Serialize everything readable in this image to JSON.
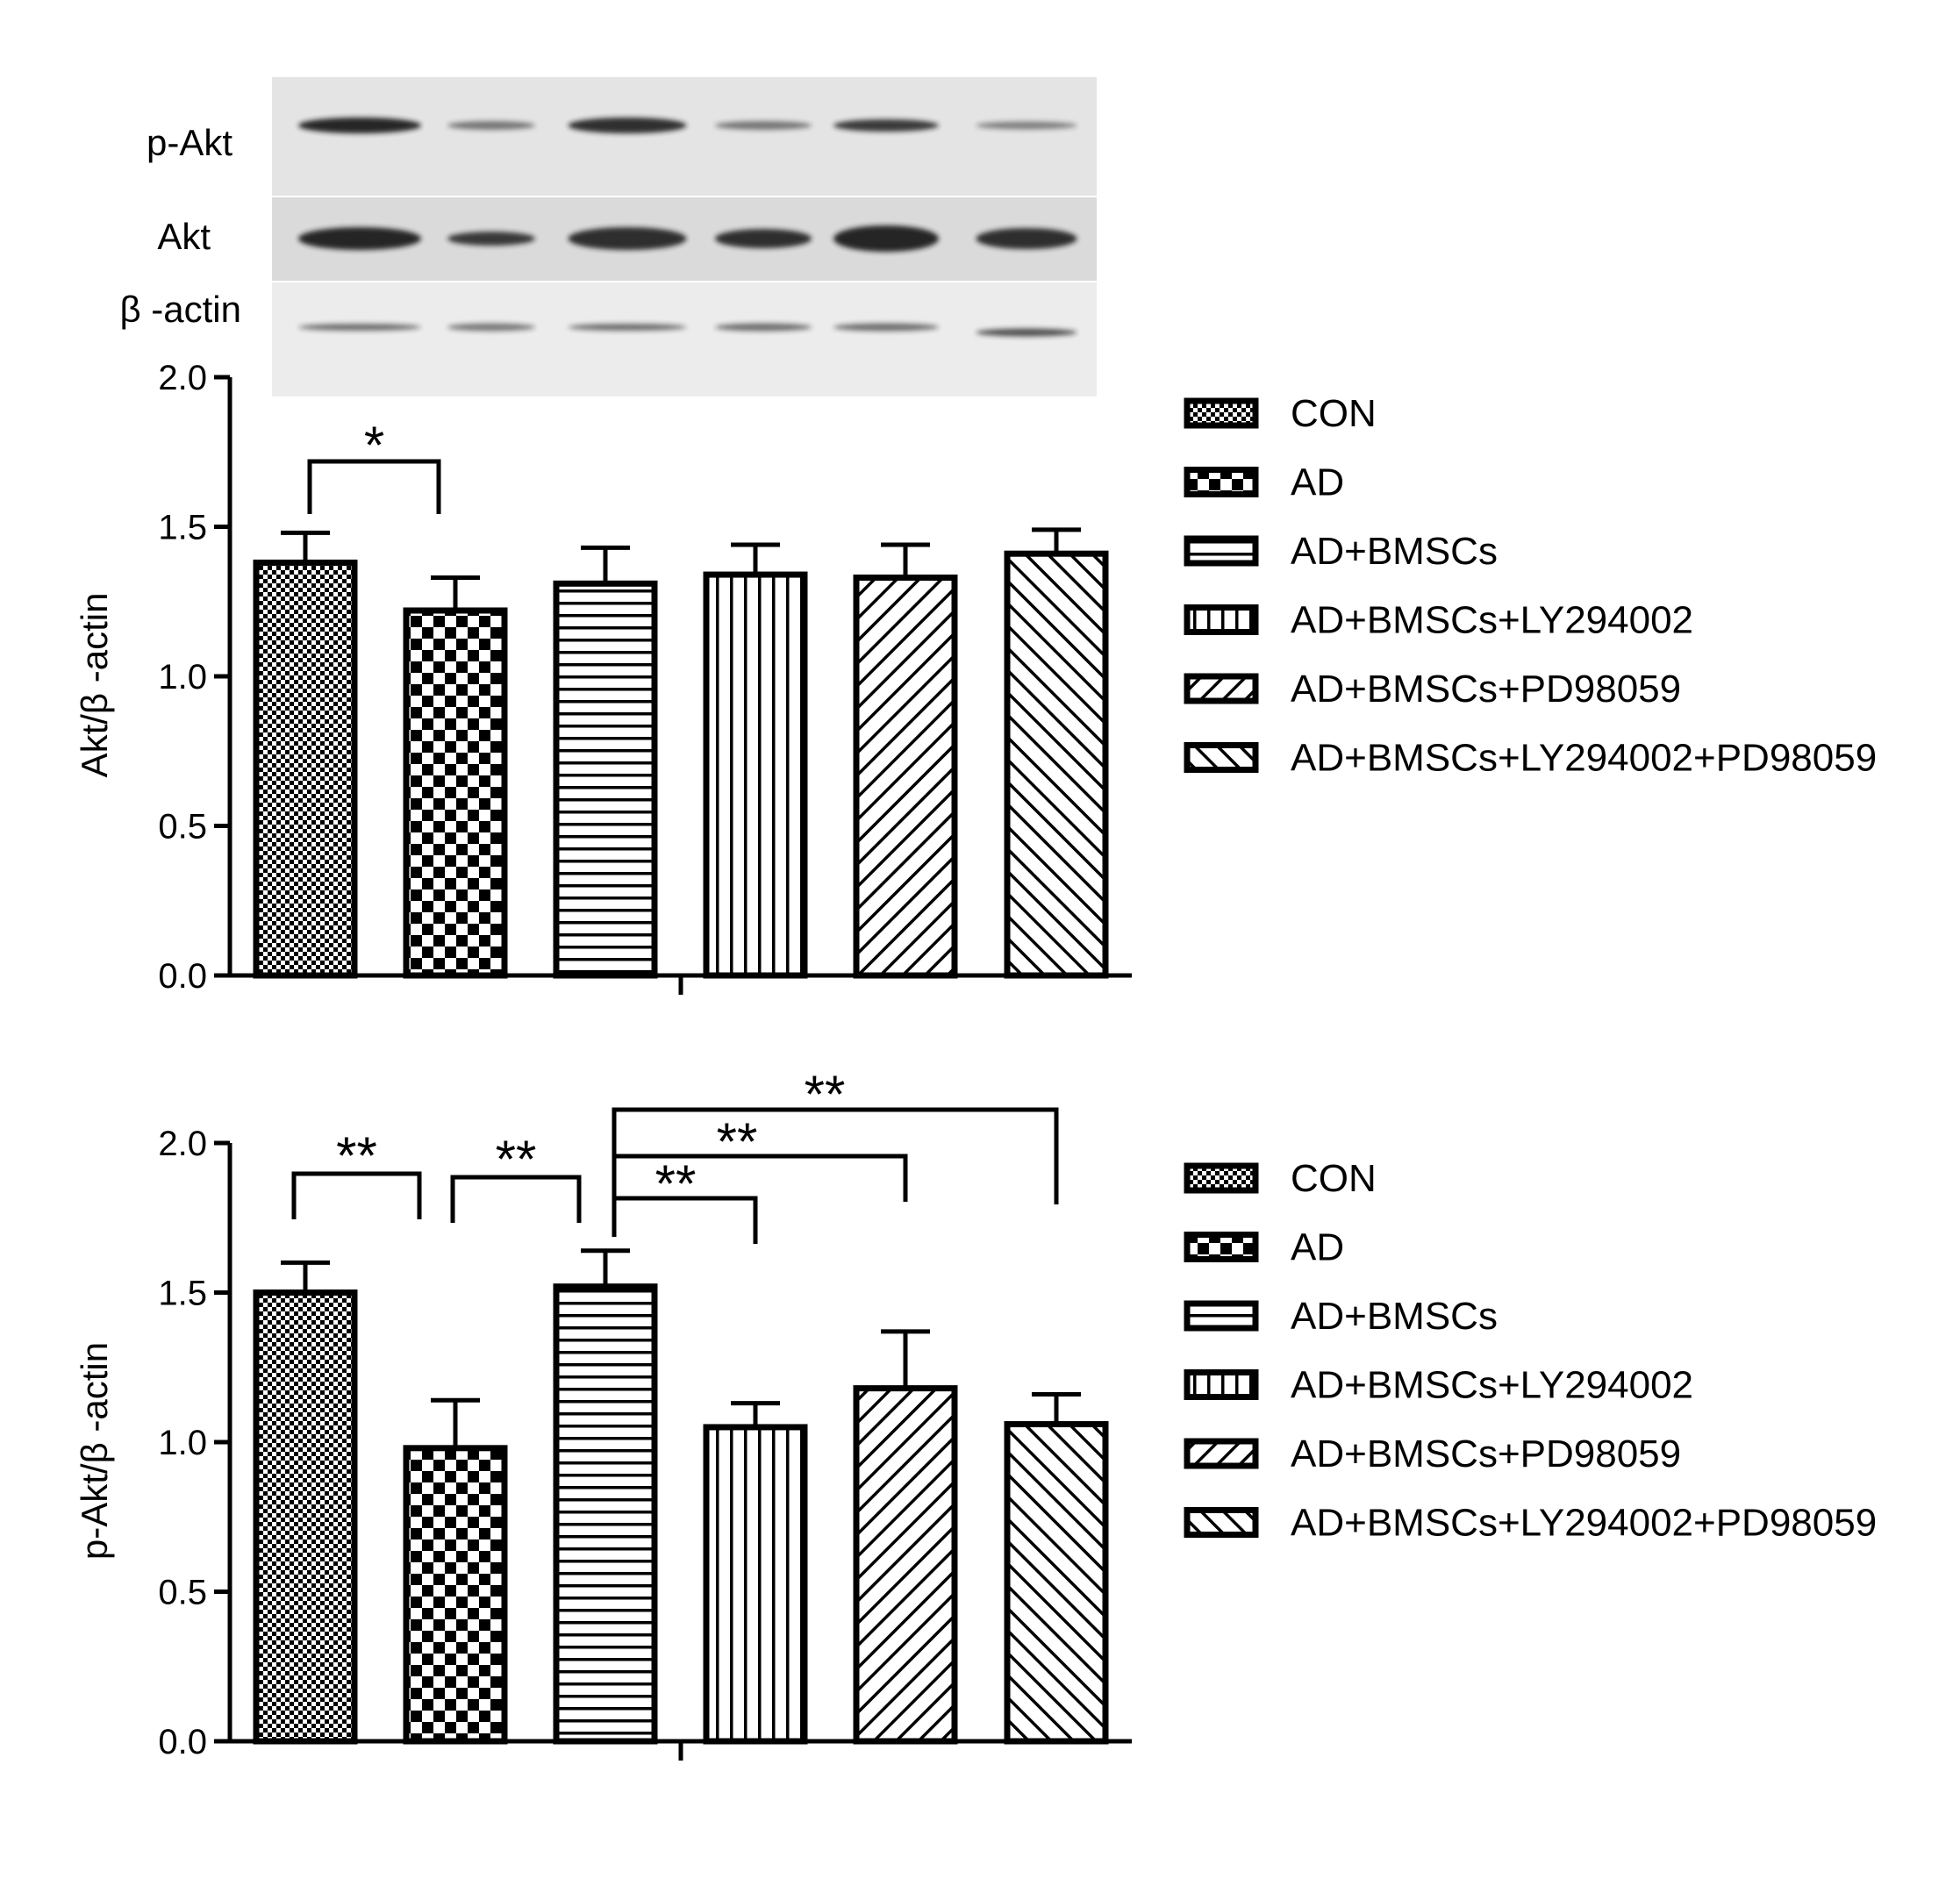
{
  "blot": {
    "rows": [
      "p-Akt",
      "Akt",
      "β -actin"
    ],
    "lanes": 6
  },
  "legend_entries": [
    "CON",
    "AD",
    "AD+BMSCs",
    "AD+BMSCs+LY294002",
    "AD+BMSCs+PD98059",
    "AD+BMSCs+LY294002+PD98059"
  ],
  "patterns": [
    "fine-checker",
    "checker",
    "horizontal",
    "vertical",
    "diag-up",
    "diag-down"
  ],
  "chart_data": [
    {
      "type": "bar",
      "title": "",
      "xlabel": "",
      "ylabel": "Akt/β -actin",
      "ylim": [
        0,
        2.0
      ],
      "yticks": [
        "0.0",
        "0.5",
        "1.0",
        "1.5",
        "2.0"
      ],
      "categories": [
        "CON",
        "AD",
        "AD+BMSCs",
        "AD+BMSCs+LY294002",
        "AD+BMSCs+PD98059",
        "AD+BMSCs+LY294002+PD98059"
      ],
      "values": [
        1.38,
        1.22,
        1.31,
        1.34,
        1.33,
        1.41
      ],
      "errors": [
        0.1,
        0.11,
        0.12,
        0.1,
        0.11,
        0.08
      ],
      "significance": [
        {
          "from": 0,
          "to": 1,
          "label": "*"
        }
      ],
      "legend_position": "right"
    },
    {
      "type": "bar",
      "title": "",
      "xlabel": "",
      "ylabel": "p-Akt/β -actin",
      "ylim": [
        0,
        2.0
      ],
      "yticks": [
        "0.0",
        "0.5",
        "1.0",
        "1.5",
        "2.0"
      ],
      "categories": [
        "CON",
        "AD",
        "AD+BMSCs",
        "AD+BMSCs+LY294002",
        "AD+BMSCs+PD98059",
        "AD+BMSCs+LY294002+PD98059"
      ],
      "values": [
        1.5,
        0.98,
        1.52,
        1.05,
        1.18,
        1.06
      ],
      "errors": [
        0.1,
        0.16,
        0.12,
        0.08,
        0.19,
        0.1
      ],
      "significance": [
        {
          "from": 0,
          "to": 1,
          "label": "**"
        },
        {
          "from": 1,
          "to": 2,
          "label": "**"
        },
        {
          "from": 2,
          "to": 3,
          "label": "**"
        },
        {
          "from": 2,
          "to": 4,
          "label": "**"
        },
        {
          "from": 2,
          "to": 5,
          "label": "**"
        }
      ],
      "legend_position": "right"
    }
  ]
}
